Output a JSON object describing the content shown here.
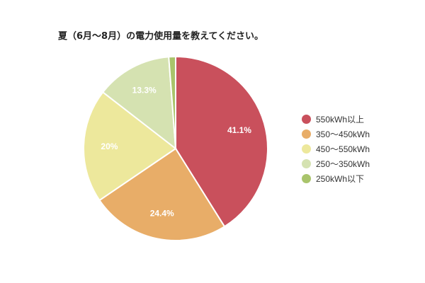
{
  "chart_data": {
    "type": "pie",
    "title": "夏（6月〜8月）の電力使用量を教えてください。",
    "categories": [
      "550kWh以上",
      "350〜450kWh",
      "450〜550kWh",
      "250〜350kWh",
      "250kWh以下"
    ],
    "values": [
      41.1,
      24.4,
      20,
      13.3,
      1.2
    ],
    "data_labels": [
      "41.1%",
      "24.4%",
      "20%",
      "13.3%",
      ""
    ],
    "colors": [
      "#c9505c",
      "#e8ad68",
      "#ede89c",
      "#d5e2b1",
      "#a9c46b"
    ],
    "legend_position": "right",
    "start_angle": "top, clockwise"
  }
}
